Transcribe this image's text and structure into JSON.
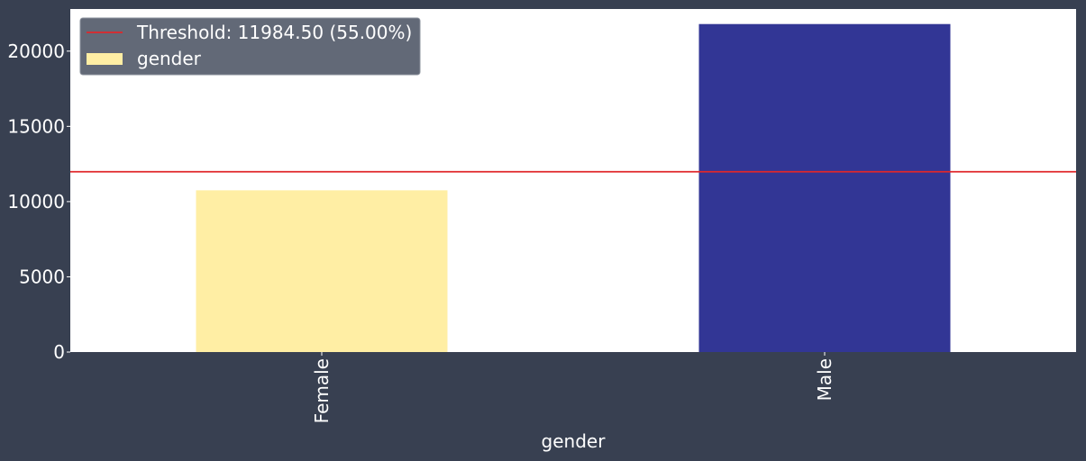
{
  "chart_data": {
    "type": "bar",
    "categories": [
      "Female",
      "Male"
    ],
    "values": [
      10750,
      21800
    ],
    "colors": [
      "#ffeea4",
      "#323695"
    ],
    "xlabel": "gender",
    "ylabel": "",
    "ylim": [
      0,
      22800
    ],
    "yticks": [
      0,
      5000,
      10000,
      15000,
      20000
    ],
    "grid": false,
    "threshold": {
      "value": 11984.5,
      "label": "Threshold: 11984.50 (55.00%)",
      "color": "#e0272b"
    },
    "legend": {
      "placement": "top-left",
      "entries": [
        "Threshold: 11984.50 (55.00%)",
        "gender"
      ]
    },
    "background": "#384051",
    "plot_background": "#ffffff"
  }
}
